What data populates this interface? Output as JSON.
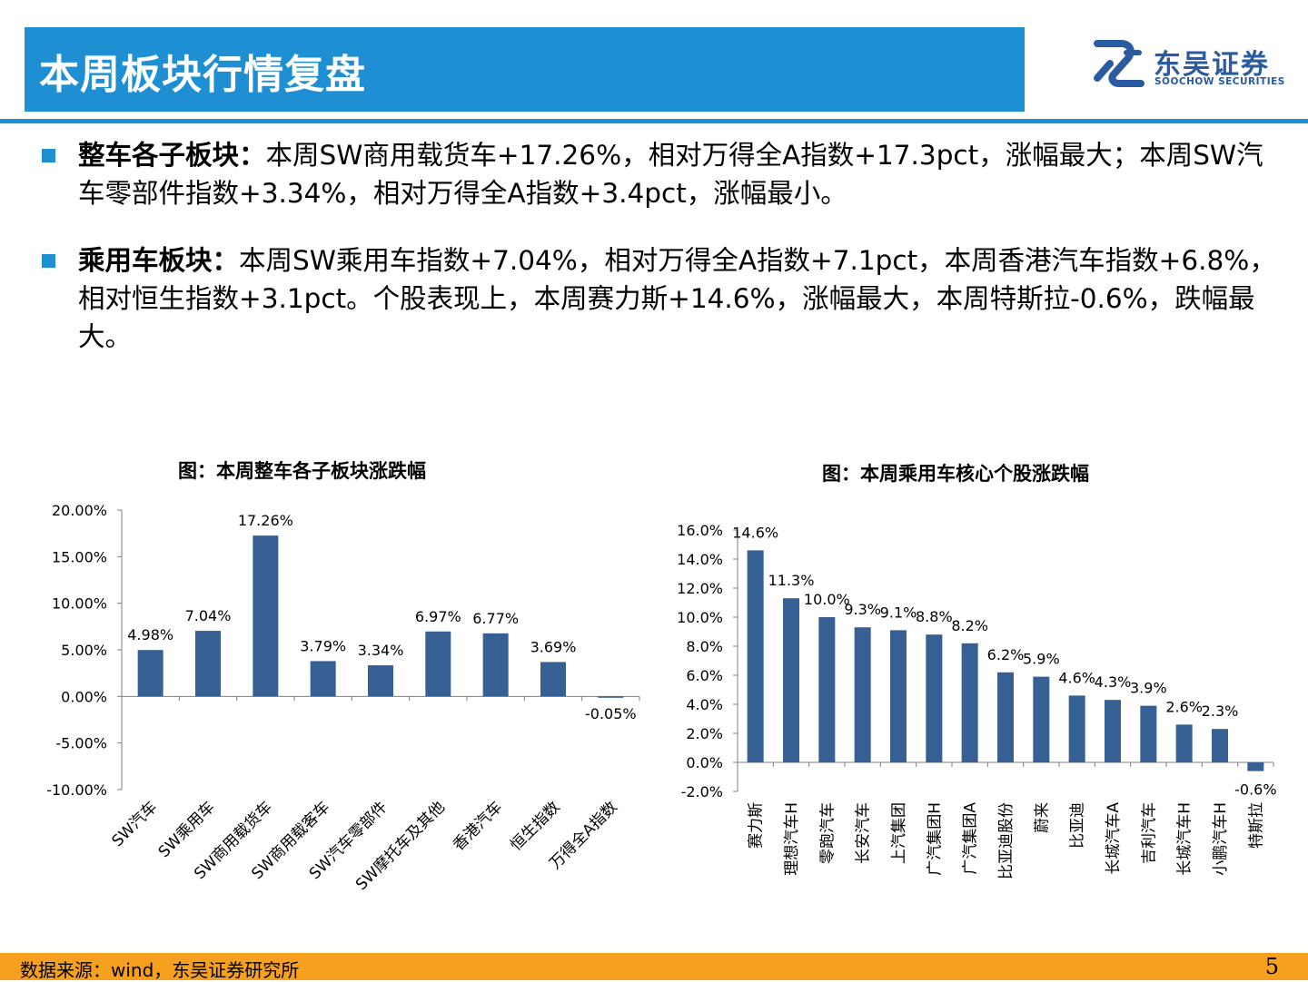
{
  "header": {
    "title": "本周板块行情复盘",
    "logo_cn": "东吴证券",
    "logo_en": "SOOCHOW SECURITIES"
  },
  "colors": {
    "accent": "#1e8fd3",
    "bar": "#365f94",
    "footer": "#f6a020",
    "logo": "#2a5aa0"
  },
  "bullets": [
    {
      "label": "整车各子板块：",
      "text": "本周SW商用载货车+17.26%，相对万得全A指数+17.3pct，涨幅最大；本周SW汽车零部件指数+3.34%，相对万得全A指数+3.4pct，涨幅最小。"
    },
    {
      "label": "乘用车板块：",
      "text": "本周SW乘用车指数+7.04%，相对万得全A指数+7.1pct，本周香港汽车指数+6.8%，相对恒生指数+3.1pct。个股表现上，本周赛力斯+14.6%，涨幅最大，本周特斯拉-0.6%，跌幅最大。"
    }
  ],
  "chart_data": [
    {
      "type": "bar",
      "title": "图：本周整车各子板块涨跌幅",
      "categories": [
        "SW汽车",
        "SW乘用车",
        "SW商用载货车",
        "SW商用载客车",
        "SW汽车零部件",
        "SW摩托车及其他",
        "香港汽车",
        "恒生指数",
        "万得全A指数"
      ],
      "values": [
        4.98,
        7.04,
        17.26,
        3.79,
        3.34,
        6.97,
        6.77,
        3.69,
        -0.05
      ],
      "data_labels": [
        "4.98%",
        "7.04%",
        "17.26%",
        "3.79%",
        "3.34%",
        "6.97%",
        "6.77%",
        "3.69%",
        "-0.05%"
      ],
      "ylim": [
        -10,
        20
      ],
      "yticks": [
        20,
        15,
        10,
        5,
        0,
        -5,
        -10
      ],
      "ytick_labels": [
        "20.00%",
        "15.00%",
        "10.00%",
        "5.00%",
        "0.00%",
        "-5.00%",
        "-10.00%"
      ],
      "xlabel": "",
      "ylabel": "",
      "grid": false,
      "legend": "none"
    },
    {
      "type": "bar",
      "title": "图：本周乘用车核心个股涨跌幅",
      "categories": [
        "赛力斯",
        "理想汽车H",
        "零跑汽车",
        "长安汽车",
        "上汽集团",
        "广汽集团H",
        "广汽集团A",
        "比亚迪股份",
        "蔚来",
        "比亚迪",
        "长城汽车A",
        "吉利汽车",
        "长城汽车H",
        "小鹏汽车H",
        "特斯拉"
      ],
      "values": [
        14.6,
        11.3,
        10.0,
        9.3,
        9.1,
        8.8,
        8.2,
        6.2,
        5.9,
        4.6,
        4.3,
        3.9,
        2.6,
        2.3,
        -0.6
      ],
      "data_labels": [
        "14.6%",
        "11.3%",
        "10.0%",
        "9.3%",
        "9.1%",
        "8.8%",
        "8.2%",
        "6.2%",
        "5.9%",
        "4.6%",
        "4.3%",
        "3.9%",
        "2.6%",
        "2.3%",
        "-0.6%"
      ],
      "ylim": [
        -2,
        16
      ],
      "yticks": [
        16,
        14,
        12,
        10,
        8,
        6,
        4,
        2,
        0,
        -2
      ],
      "ytick_labels": [
        "16.0%",
        "14.0%",
        "12.0%",
        "10.0%",
        "8.0%",
        "6.0%",
        "4.0%",
        "2.0%",
        "0.0%",
        "-2.0%"
      ],
      "xlabel": "",
      "ylabel": "",
      "grid": false,
      "legend": "none"
    }
  ],
  "footer": {
    "source": "数据来源：wind，东吴证券研究所",
    "page": "5"
  }
}
